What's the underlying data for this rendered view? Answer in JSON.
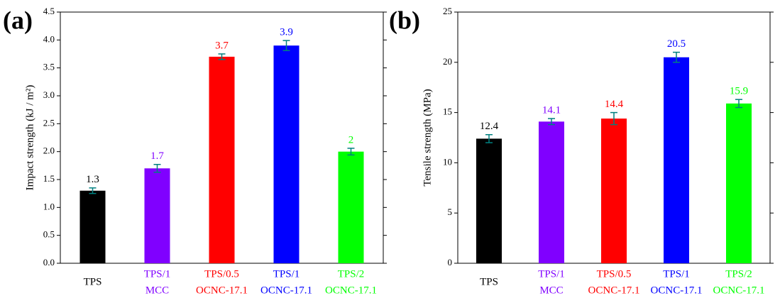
{
  "chart_data": [
    {
      "type": "bar",
      "panel_label": "(a)",
      "ylabel": "Impact strength (kJ / m²)",
      "categories": [
        [
          "TPS"
        ],
        [
          "TPS/1",
          "MCC"
        ],
        [
          "TPS/0.5",
          "OCNC-17.1"
        ],
        [
          "TPS/1",
          "OCNC-17.1"
        ],
        [
          "TPS/2",
          "OCNC-17.1"
        ]
      ],
      "values": [
        1.3,
        1.7,
        3.7,
        3.9,
        2
      ],
      "errors": [
        0.05,
        0.07,
        0.05,
        0.09,
        0.06
      ],
      "colors": [
        "#000000",
        "#8000ff",
        "#ff0000",
        "#0000ff",
        "#00ff00"
      ],
      "error_color": "#008080",
      "ylim": [
        0,
        4.5
      ],
      "yticks": [
        {
          "value": 0,
          "label": "0.0"
        },
        {
          "value": 0.5,
          "label": "0.5"
        },
        {
          "value": 1,
          "label": "1.0"
        },
        {
          "value": 1.5,
          "label": "1.5"
        },
        {
          "value": 2,
          "label": "2.0"
        },
        {
          "value": 2.5,
          "label": "2.5"
        },
        {
          "value": 3,
          "label": "3.0"
        },
        {
          "value": 3.5,
          "label": "3.5"
        },
        {
          "value": 4,
          "label": "4.0"
        },
        {
          "value": 4.5,
          "label": "4.5"
        }
      ]
    },
    {
      "type": "bar",
      "panel_label": "(b)",
      "ylabel": "Tensile strength (MPa)",
      "categories": [
        [
          "TPS"
        ],
        [
          "TPS/1",
          "MCC"
        ],
        [
          "TPS/0.5",
          "OCNC-17.1"
        ],
        [
          "TPS/1",
          "OCNC-17.1"
        ],
        [
          "TPS/2",
          "OCNC-17.1"
        ]
      ],
      "values": [
        12.4,
        14.1,
        14.4,
        20.5,
        15.9
      ],
      "errors": [
        0.4,
        0.3,
        0.6,
        0.5,
        0.4
      ],
      "colors": [
        "#000000",
        "#8000ff",
        "#ff0000",
        "#0000ff",
        "#00ff00"
      ],
      "error_color": "#008080",
      "ylim": [
        0,
        25
      ],
      "yticks": [
        0,
        5,
        10,
        15,
        20,
        25
      ]
    }
  ]
}
